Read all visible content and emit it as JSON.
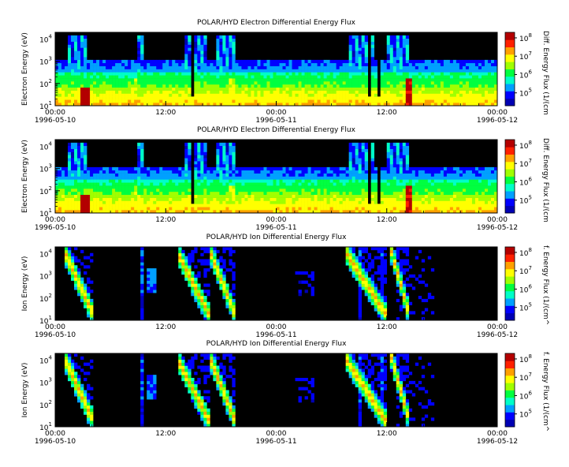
{
  "chart_data": [
    {
      "type": "heatmap",
      "title": "POLAR/HYD  Electron Differential Energy Flux",
      "ylabel": "Electron Energy (eV)",
      "colorbar_label": "Diff. Energy Flux (1/(cm",
      "yscale": "log",
      "ylim": [
        10,
        20000
      ],
      "ytick_exponents": [
        1,
        2,
        3,
        4
      ],
      "xtick_labels": [
        "00:00",
        "12:00",
        "00:00",
        "12:00",
        "00:00"
      ],
      "date_labels": [
        {
          "text": "1996-05-10",
          "x_hours": 0
        },
        {
          "text": "1996-05-11",
          "x_hours": 24
        },
        {
          "text": "1996-05-12",
          "x_hours": 48
        }
      ],
      "xlim_hours": [
        0,
        48
      ],
      "cbar_exponents": [
        5,
        6,
        7,
        8
      ],
      "cbar_range_exp": [
        4.3,
        8.3
      ],
      "data_gap_hours": [
        23.9,
        24.05
      ]
    },
    {
      "type": "heatmap",
      "title": "POLAR/HYD  Electron Differential Energy Flux",
      "ylabel": "Electron Energy (eV)",
      "colorbar_label": "Diff. Energy Flux (1/(cm",
      "yscale": "log",
      "ylim": [
        10,
        20000
      ],
      "ytick_exponents": [
        1,
        2,
        3,
        4
      ],
      "xtick_labels": [
        "00:00",
        "12:00",
        "00:00",
        "12:00",
        "00:00"
      ],
      "date_labels": [
        {
          "text": "1996-05-10",
          "x_hours": 0
        },
        {
          "text": "1996-05-11",
          "x_hours": 24
        },
        {
          "text": "1996-05-12",
          "x_hours": 48
        }
      ],
      "xlim_hours": [
        0,
        48
      ],
      "cbar_exponents": [
        5,
        6,
        7,
        8
      ],
      "cbar_range_exp": [
        4.3,
        8.3
      ],
      "data_gap_hours": [
        23.9,
        24.05
      ]
    },
    {
      "type": "heatmap",
      "title": "POLAR/HYD  Ion Differential Energy Flux",
      "ylabel": "Ion Energy (eV)",
      "colorbar_label": "f. Energy Flux (1/(cm^",
      "yscale": "log",
      "ylim": [
        10,
        20000
      ],
      "ytick_exponents": [
        1,
        2,
        3,
        4
      ],
      "xtick_labels": [
        "00:00",
        "12:00",
        "00:00",
        "12:00",
        "00:00"
      ],
      "date_labels": [
        {
          "text": "1996-05-10",
          "x_hours": 0
        },
        {
          "text": "1996-05-11",
          "x_hours": 24
        },
        {
          "text": "1996-05-12",
          "x_hours": 48
        }
      ],
      "xlim_hours": [
        0,
        48
      ],
      "cbar_exponents": [
        5,
        6,
        7,
        8
      ],
      "cbar_range_exp": [
        4.3,
        8.3
      ],
      "data_gap_hours": [
        23.9,
        24.05
      ]
    },
    {
      "type": "heatmap",
      "title": "POLAR/HYD  Ion Differential Energy Flux",
      "ylabel": "Ion Energy (eV)",
      "colorbar_label": "f. Energy Flux (1/(cm^",
      "yscale": "log",
      "ylim": [
        10,
        20000
      ],
      "ytick_exponents": [
        1,
        2,
        3,
        4
      ],
      "xtick_labels": [
        "00:00",
        "12:00",
        "00:00",
        "12:00",
        "00:00"
      ],
      "date_labels": [
        {
          "text": "1996-05-10",
          "x_hours": 0
        },
        {
          "text": "1996-05-11",
          "x_hours": 24
        },
        {
          "text": "1996-05-12",
          "x_hours": 48
        }
      ],
      "xlim_hours": [
        0,
        48
      ],
      "cbar_exponents": [
        5,
        6,
        7,
        8
      ],
      "cbar_range_exp": [
        4.3,
        8.3
      ],
      "data_gap_hours": [
        23.9,
        24.05
      ]
    }
  ],
  "colors": {
    "background": "#000000",
    "colormap": [
      "#0000b4",
      "#0000ff",
      "#00a0ff",
      "#00ffc8",
      "#00ff40",
      "#a0ff00",
      "#ffff00",
      "#ffa000",
      "#ff2000",
      "#b40000"
    ],
    "gap": "#ffffff"
  }
}
